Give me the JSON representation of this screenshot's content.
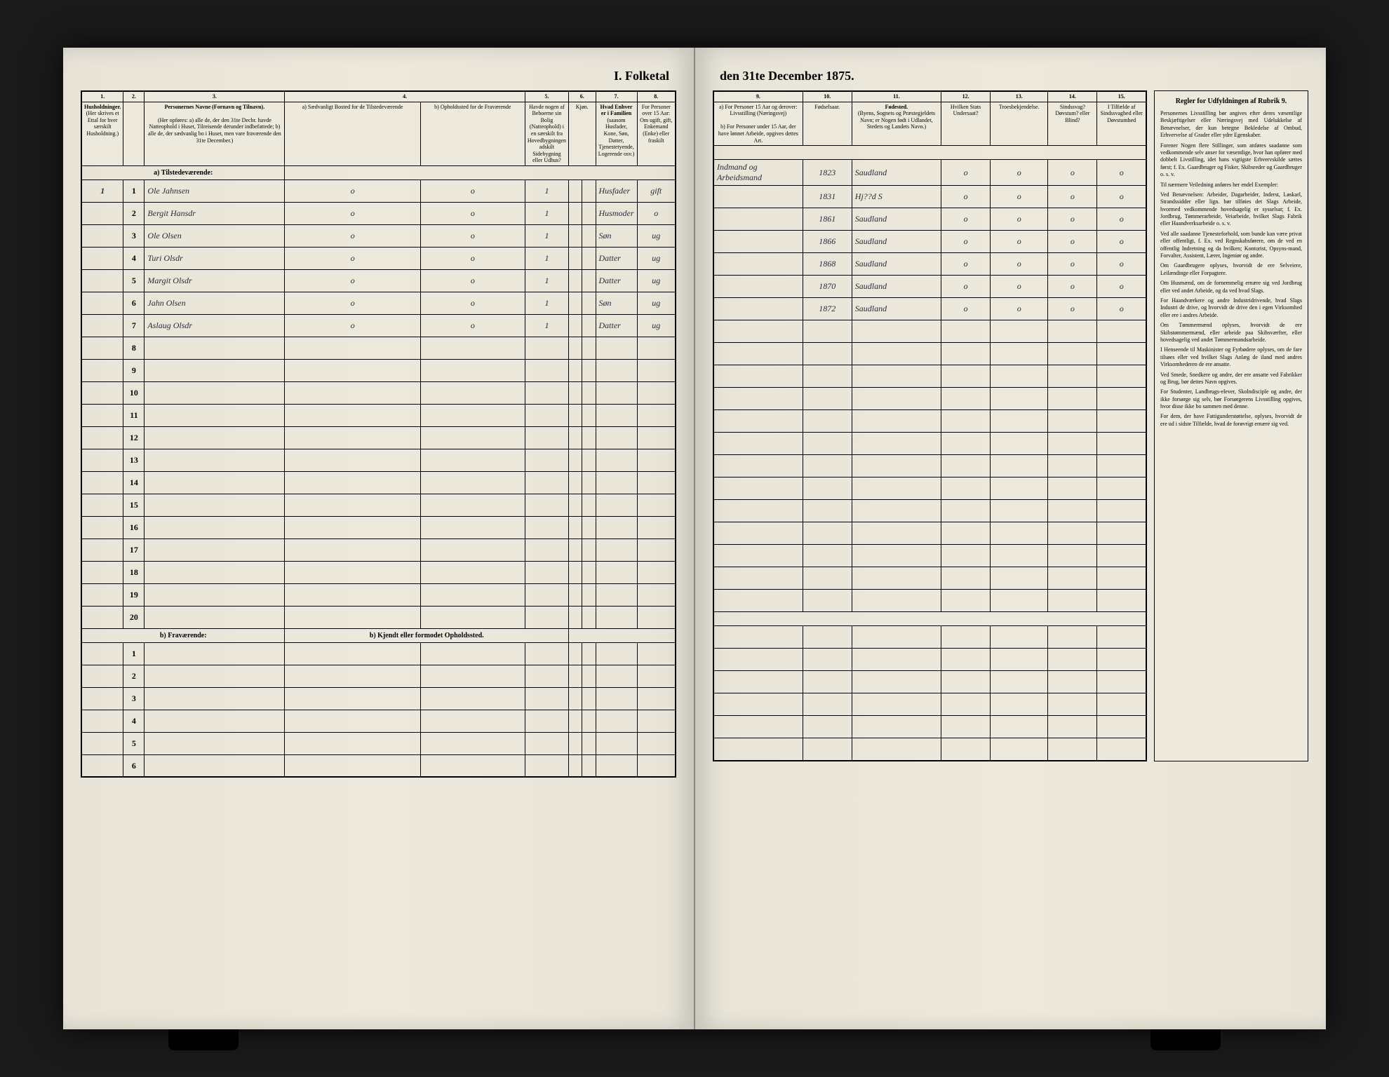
{
  "document": {
    "title_left": "I. Folketal",
    "title_right": "den 31te December 1875.",
    "section_a": "a) Tilstedeværende:",
    "section_b": "b) Fraværende:",
    "section_b_note": "b) Kjendt eller formodet Opholdssted."
  },
  "columns_left": {
    "c1": "1.",
    "c2": "2.",
    "c3": "3.",
    "c4": "4.",
    "c5": "5.",
    "c6": "6.",
    "c7": "7.",
    "c8": "8.",
    "h1": "Husholdninger.",
    "h1_text": "(Her skrives et Ettal for hver særskilt Husholdning.)",
    "h2": "",
    "h3": "Personernes Navne (Fornavn og Tilnavn).",
    "h3_sub": "(Her opføres: a) alle de, der den 31te Decbr. havde Natteophold i Huset, Tilreisende derunder indbefattede; b) alle de, der sædvanlig bo i Huset, men vare fraværende den 31te December.)",
    "h4a": "a) Sædvanligt Bosted for de Tilstedeværende",
    "h4b": "b) Opholdssted for de Fraværende",
    "h5": "Havde nogen af Beboerne sin Bolig (Natteophold) i en særskilt fra Hovedbygningen adskilt Sidebygning eller Udhus?",
    "h6": "Kjøn.",
    "h7": "Hvad Enhver er i Familien",
    "h7_sub": "(saasom Husfader, Kone, Søn, Datter, Tjenestetyende, Logerende osv.)",
    "h8": "For Personer over 15 Aar: Om ugift, gift, Enkemand (Enke) eller fraskilt"
  },
  "columns_right": {
    "c9": "9.",
    "c10": "10.",
    "c11": "11.",
    "c12": "12.",
    "c13": "13.",
    "c14": "14.",
    "c15": "15.",
    "h9a": "a) For Personer 15 Aar og derover: Livsstilling (Næringsvej)",
    "h9b": "b) For Personer under 15 Aar, der have lønnet Arbeide, opgives dettes Art.",
    "h10": "Fødselsaar.",
    "h11": "Fødested.",
    "h11_sub": "(Byens, Sognets og Præstegjeldets Navn; er Nogen født i Udlandet, Stedets og Landets Navn.)",
    "h12": "Hvilken Stats Undersaat?",
    "h13": "Troesbekjendelse.",
    "h14": "Sindssvag? Døvstum? eller Blind?",
    "h15": "I Tilfælde af Sindssvaghed eller Døvstumhed"
  },
  "rows": [
    {
      "n": "1",
      "hh": "1",
      "name": "Ole Jahnsen",
      "c4": "o",
      "c5": "o",
      "c6": "1",
      "role": "Husfader",
      "status": "gift",
      "occ": "Indmand og Arbeidsmand",
      "year": "1823",
      "place": "Saudland",
      "c12": "o",
      "c13": "o",
      "c14": "o",
      "c15": "o"
    },
    {
      "n": "2",
      "hh": "",
      "name": "Bergit Hansdr",
      "c4": "o",
      "c5": "o",
      "c6": "1",
      "role": "Husmoder",
      "status": "o",
      "occ": "",
      "year": "1831",
      "place": "Hj??d S",
      "c12": "o",
      "c13": "o",
      "c14": "o",
      "c15": "o"
    },
    {
      "n": "3",
      "hh": "",
      "name": "Ole Olsen",
      "c4": "o",
      "c5": "o",
      "c6": "1",
      "role": "Søn",
      "status": "ug",
      "occ": "",
      "year": "1861",
      "place": "Saudland",
      "c12": "o",
      "c13": "o",
      "c14": "o",
      "c15": "o"
    },
    {
      "n": "4",
      "hh": "",
      "name": "Turi Olsdr",
      "c4": "o",
      "c5": "o",
      "c6": "1",
      "role": "Datter",
      "status": "ug",
      "occ": "",
      "year": "1866",
      "place": "Saudland",
      "c12": "o",
      "c13": "o",
      "c14": "o",
      "c15": "o"
    },
    {
      "n": "5",
      "hh": "",
      "name": "Margit Olsdr",
      "c4": "o",
      "c5": "o",
      "c6": "1",
      "role": "Datter",
      "status": "ug",
      "occ": "",
      "year": "1868",
      "place": "Saudland",
      "c12": "o",
      "c13": "o",
      "c14": "o",
      "c15": "o"
    },
    {
      "n": "6",
      "hh": "",
      "name": "Jahn Olsen",
      "c4": "o",
      "c5": "o",
      "c6": "1",
      "role": "Søn",
      "status": "ug",
      "occ": "",
      "year": "1870",
      "place": "Saudland",
      "c12": "o",
      "c13": "o",
      "c14": "o",
      "c15": "o"
    },
    {
      "n": "7",
      "hh": "",
      "name": "Aslaug Olsdr",
      "c4": "o",
      "c5": "o",
      "c6": "1",
      "role": "Datter",
      "status": "ug",
      "occ": "",
      "year": "1872",
      "place": "Saudland",
      "c12": "o",
      "c13": "o",
      "c14": "o",
      "c15": "o"
    }
  ],
  "empty_rows_a": [
    "8",
    "9",
    "10",
    "11",
    "12",
    "13",
    "14",
    "15",
    "16",
    "17",
    "18",
    "19",
    "20"
  ],
  "empty_rows_b": [
    "1",
    "2",
    "3",
    "4",
    "5",
    "6"
  ],
  "instructions": {
    "title": "Regler for Udfyldningen af Rubrik 9.",
    "paragraphs": [
      "Personernes Livsstilling bør angives efter deres væsentlige Beskjæftigelser eller Næringsvej med Udelukkelse af Benævnelser, der kun betegne Bekledelse af Ombud, Erhvervelse af Grader eller ydre Egenskaber.",
      "Forener Nogen flere Stillinger, som anføres saadanne som vedkommende selv anser for væsentlige, hvor han opfører med dobbelt Livstilling, idet hans vigtigste Erhvervskilde sættes først; f. Ex. Gaardbruger og Fisker, Skibsreder og Gaardbruger o. s. v.",
      "Til nærmere Veiledning anføres her endel Exempler:",
      "Ved Benævnelsen: Arbeider, Dagarbeider, Inderst, Løskarl, Strandssidder eller lign. bør tilføies det Slags Arbeide, hvormed vedkommende hovedsagelig er sysselsat; f. Ex. Jordbrug, Tømmerarbeide, Veiarbeide, hvilket Slags Fabrik eller Haandverksarbeide o. s. v.",
      "Ved alle saadanne Tjenesteforhold, som bunde kan være privat eller offentligt, f. Ex. ved Regnskabsførere, om de ved en offentlig Indretning og da hvilken; Kontorist, Opsyns-mand, Forvalter, Assistent, Lærer, Ingeniør og andre.",
      "Om Gaardbrugere oplyses, hvorvidt de ere Selveiere, Leilændinge eller Forpagtere.",
      "Om Husmænd, om de fornemmelig ernære sig ved Jordbrug eller ved andet Arbeide, og da ved hvad Slags.",
      "For Haandværkere og andre Industridrivende, hvad Slags Industri de drive, og hvorvidt de drive den i egen Virksomhed eller ere i andres Arbeide.",
      "Om Tømmermænd oplyses, hvorvidt de ere Skibstømmermænd, eller arbeide paa Skibsværfter, eller hovedsagelig ved andet Tømmermandsarbeide.",
      "I Henseende til Maskinister og Fyrbødere oplyses, om de fare tilsøes eller ved hvilket Slags Anlæg de iland med andres Virksomhederen de ere ansatte.",
      "Ved Smede, Snedkere og andre, der ere ansatte ved Fabrikker og Brug, bør dettes Navn opgives.",
      "For Studenter, Landbrugs-elever, Skolndisciple og andre, der ikke forsørge sig selv, bør Forsørgerens Livsstilling opgives, hvor disse ikke bo sammen med denne.",
      "For dem, der have Fattigunderstøttelse, oplyses, hvorvidt de ere ud i sidste Tilfælde, hvad de forøvrigt ernære sig ved."
    ]
  },
  "styling": {
    "page_bg": "#e8e4d8",
    "border_color": "#000000",
    "handwriting_color": "#2a2a3a"
  }
}
